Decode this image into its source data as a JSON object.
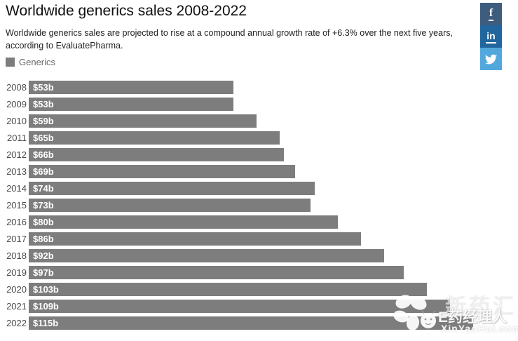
{
  "header": {
    "title": "Worldwide generics sales 2008-2022",
    "subtitle": "Worldwide generics sales are projected to rise at a compound annual growth rate of +6.3% over the next five years, according to EvaluatePharma."
  },
  "legend": {
    "label": "Generics",
    "swatch_color": "#7d7d7d"
  },
  "share": {
    "facebook": {
      "label": "f",
      "color": "#3e5c7e"
    },
    "linkedin": {
      "label": "in",
      "color": "#21669e"
    },
    "twitter": {
      "icon": "twitter-bird",
      "color": "#52a8dc"
    }
  },
  "chart_data": {
    "type": "bar",
    "orientation": "horizontal",
    "title": "Worldwide generics sales 2008-2022",
    "series_name": "Generics",
    "categories": [
      "2008",
      "2009",
      "2010",
      "2011",
      "2012",
      "2013",
      "2014",
      "2015",
      "2016",
      "2017",
      "2018",
      "2019",
      "2020",
      "2021",
      "2022"
    ],
    "values": [
      53,
      53,
      59,
      65,
      66,
      69,
      74,
      73,
      80,
      86,
      92,
      97,
      103,
      109,
      115
    ],
    "value_labels": [
      "$53b",
      "$53b",
      "$59b",
      "$65b",
      "$66b",
      "$69b",
      "$74b",
      "$73b",
      "$80b",
      "$86b",
      "$92b",
      "$97b",
      "$103b",
      "$109b",
      "$115b"
    ],
    "unit": "USD billions",
    "bar_color": "#7d7d7d",
    "value_axis_visible": false,
    "grid": false,
    "legend_position": "top-left",
    "xlim": [
      0,
      120
    ]
  },
  "watermark": {
    "faint_text": "新药汇",
    "brand": "E药经理人",
    "domain": "XinYaoHui.com"
  }
}
